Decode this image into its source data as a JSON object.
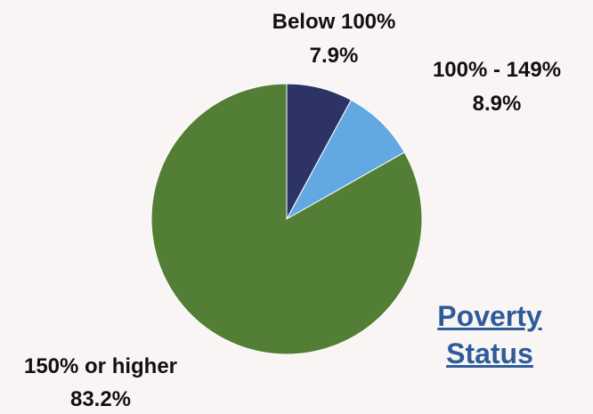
{
  "chart_data": {
    "type": "pie",
    "title_lines": [
      "Poverty",
      "Status"
    ],
    "slices": [
      {
        "name": "Below 100%",
        "value": 7.9,
        "value_label": "7.9%",
        "color": "#2e3366"
      },
      {
        "name": "100% - 149%",
        "value": 8.9,
        "value_label": "8.9%",
        "color": "#62a9e2"
      },
      {
        "name": "150% or higher",
        "value": 83.2,
        "value_label": "83.2%",
        "color": "#527f35"
      }
    ],
    "start": "12 o'clock",
    "direction": "clockwise",
    "legend": "none (labels outside slices)"
  }
}
